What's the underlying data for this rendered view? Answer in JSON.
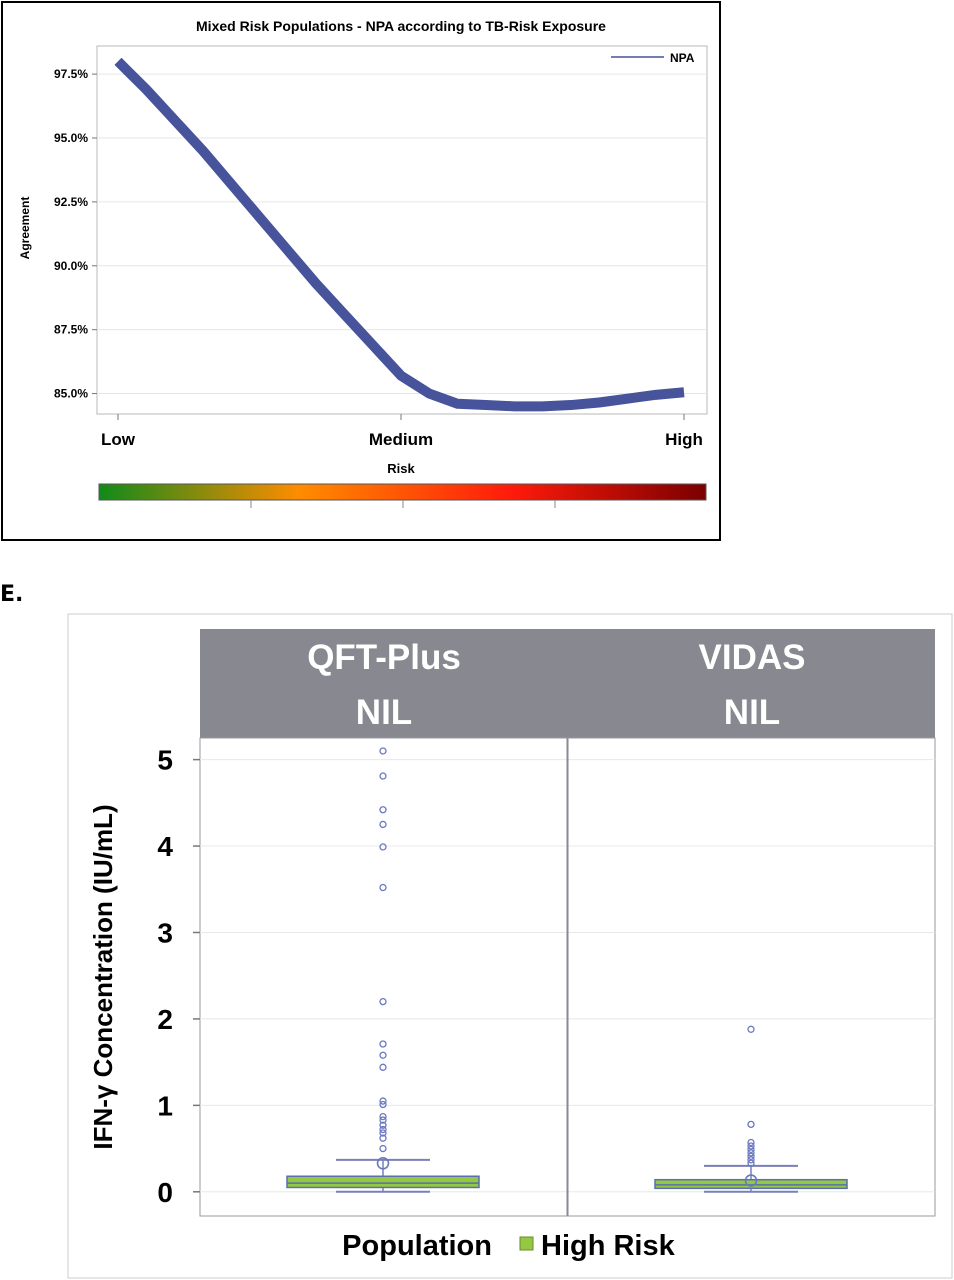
{
  "chart_data": [
    {
      "type": "line",
      "title": "Mixed Risk Populations  - NPA according to TB-Risk Exposure",
      "xlabel": "Risk",
      "ylabel": "Agreement",
      "x_categories": [
        "Low",
        "Medium",
        "High"
      ],
      "x": [
        0,
        0.1,
        0.2,
        0.3,
        0.4,
        0.5,
        0.6,
        0.7,
        0.8,
        0.9,
        1.0,
        1.1,
        1.2,
        1.3,
        1.4,
        1.5,
        1.6,
        1.7,
        1.8,
        1.9,
        2.0
      ],
      "series": [
        {
          "name": "NPA",
          "values": [
            98.0,
            96.9,
            95.7,
            94.5,
            93.2,
            91.9,
            90.6,
            89.3,
            88.1,
            86.9,
            85.7,
            85.0,
            84.6,
            84.55,
            84.5,
            84.5,
            84.55,
            84.65,
            84.8,
            84.95,
            85.05
          ]
        }
      ],
      "yticks": [
        "97.5%",
        "95.0%",
        "92.5%",
        "90.0%",
        "87.5%",
        "85.0%"
      ],
      "ytick_values": [
        97.5,
        95.0,
        92.5,
        90.0,
        87.5,
        85.0
      ],
      "ylim": [
        84.2,
        98.6
      ],
      "grid": true,
      "legend": "top-right",
      "colors": {
        "line": "#47539b",
        "gradient": [
          "#118a1a",
          "#ff8c00",
          "#ff1a0a",
          "#7a0000"
        ]
      }
    },
    {
      "type": "box",
      "panel_label": "E.",
      "ylabel": "IFN-γ  Concentration (IU/mL)",
      "panels": [
        {
          "header_line1": "QFT-Plus",
          "header_line2": "NIL",
          "box": {
            "whisker_low": 0.0,
            "q1": 0.05,
            "median": 0.1,
            "q3": 0.18,
            "whisker_high": 0.37,
            "mean": 0.33
          },
          "outliers": [
            5.1,
            4.81,
            4.42,
            4.25,
            3.99,
            3.52,
            2.2,
            1.71,
            1.58,
            1.44,
            1.05,
            1.01,
            0.87,
            0.83,
            0.77,
            0.72,
            0.68,
            0.62,
            0.5
          ]
        },
        {
          "header_line1": "VIDAS",
          "header_line2": "NIL",
          "box": {
            "whisker_low": 0.0,
            "q1": 0.04,
            "median": 0.08,
            "q3": 0.14,
            "whisker_high": 0.3,
            "mean": 0.13
          },
          "outliers": [
            1.88,
            0.78,
            0.57,
            0.53,
            0.49,
            0.45,
            0.41,
            0.37,
            0.33
          ]
        }
      ],
      "yticks": [
        "0",
        "1",
        "2",
        "3",
        "4",
        "5"
      ],
      "ytick_values": [
        0,
        1,
        2,
        3,
        4,
        5
      ],
      "ylim": [
        -0.28,
        5.25
      ],
      "grid": true,
      "legend": "bottom",
      "legend_title": "Population",
      "legend_entry": "High Risk",
      "colors": {
        "box": "#94c841",
        "box_edge": "#5a6fb0",
        "outlier": "#6a78c0",
        "header": "#888891",
        "whisker": "#7880b8"
      }
    }
  ]
}
